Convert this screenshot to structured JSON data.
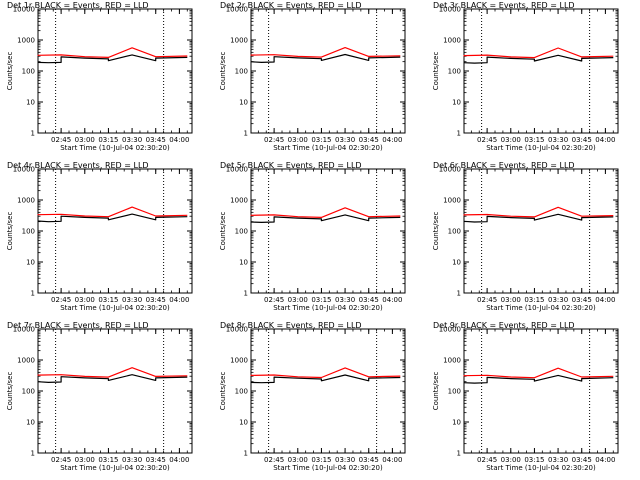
{
  "chart_data": [
    {
      "type": "line",
      "title": "Det 1r BLACK = Events, RED = LLD",
      "xlabel": "Start Time (10-Jul-04 02:30:20)",
      "ylabel": "Counts/sec",
      "yscale": "log",
      "ylim": [
        1,
        10000
      ],
      "xlim": [
        "02:30:20",
        "04:08:00"
      ],
      "xtick_labels": [
        "02:45",
        "03:00",
        "03:15",
        "03:30",
        "03:45",
        "04:00"
      ],
      "ytick_labels": [
        "1",
        "10",
        "100",
        "1000",
        "10000"
      ],
      "vlines": [
        "02:41:30",
        "03:50:00"
      ],
      "series": [
        {
          "color": "#000000",
          "x": [
            "02:30",
            "02:37",
            "02:37",
            "02:45",
            "02:45",
            "03:00",
            "03:15",
            "03:15",
            "03:30",
            "03:45",
            "03:45",
            "04:05"
          ],
          "values": [
            190,
            185,
            185,
            190,
            285,
            260,
            245,
            215,
            330,
            215,
            260,
            275
          ]
        },
        {
          "color": "#ff0000",
          "x": [
            "02:30",
            "02:45",
            "03:00",
            "03:15",
            "03:30",
            "03:45",
            "04:05"
          ],
          "values": [
            320,
            330,
            290,
            275,
            560,
            290,
            305
          ]
        }
      ]
    },
    {
      "type": "line",
      "title": "Det 2r BLACK = Events, RED = LLD",
      "xlabel": "Start Time (10-Jul-04 02:30:20)",
      "ylabel": "Counts/sec",
      "yscale": "log",
      "ylim": [
        1,
        10000
      ],
      "xlim": [
        "02:30:20",
        "04:08:00"
      ],
      "xtick_labels": [
        "02:45",
        "03:00",
        "03:15",
        "03:30",
        "03:45",
        "04:00"
      ],
      "ytick_labels": [
        "1",
        "10",
        "100",
        "1000",
        "10000"
      ],
      "vlines": [
        "02:41:30",
        "03:50:00"
      ],
      "series": [
        {
          "color": "#000000",
          "x": [
            "02:30",
            "02:37",
            "02:37",
            "02:45",
            "02:45",
            "03:00",
            "03:15",
            "03:15",
            "03:30",
            "03:45",
            "03:45",
            "04:05"
          ],
          "values": [
            200,
            190,
            190,
            195,
            290,
            265,
            250,
            220,
            340,
            220,
            265,
            280
          ]
        },
        {
          "color": "#ff0000",
          "x": [
            "02:30",
            "02:45",
            "03:00",
            "03:15",
            "03:30",
            "03:45",
            "04:05"
          ],
          "values": [
            325,
            335,
            295,
            280,
            570,
            295,
            310
          ]
        }
      ]
    },
    {
      "type": "line",
      "title": "Det 3r BLACK = Events, RED = LLD",
      "xlabel": "Start Time (10-Jul-04 02:30:20)",
      "ylabel": "Counts/sec",
      "yscale": "log",
      "ylim": [
        1,
        10000
      ],
      "xlim": [
        "02:30:20",
        "04:08:00"
      ],
      "xtick_labels": [
        "02:45",
        "03:00",
        "03:15",
        "03:30",
        "03:45",
        "04:00"
      ],
      "ytick_labels": [
        "1",
        "10",
        "100",
        "1000",
        "10000"
      ],
      "vlines": [
        "02:41:30",
        "03:50:00"
      ],
      "series": [
        {
          "color": "#000000",
          "x": [
            "02:30",
            "02:37",
            "02:37",
            "02:45",
            "02:45",
            "03:00",
            "03:15",
            "03:15",
            "03:30",
            "03:45",
            "03:45",
            "04:05"
          ],
          "values": [
            185,
            180,
            180,
            185,
            280,
            255,
            240,
            210,
            320,
            210,
            255,
            270
          ]
        },
        {
          "color": "#ff0000",
          "x": [
            "02:30",
            "02:45",
            "03:00",
            "03:15",
            "03:30",
            "03:45",
            "04:05"
          ],
          "values": [
            315,
            325,
            285,
            270,
            550,
            285,
            300
          ]
        }
      ]
    },
    {
      "type": "line",
      "title": "Det 4r BLACK = Events, RED = LLD",
      "xlabel": "Start Time (10-Jul-04 02:30:20)",
      "ylabel": "Counts/sec",
      "yscale": "log",
      "ylim": [
        1,
        10000
      ],
      "xlim": [
        "02:30:20",
        "04:08:00"
      ],
      "xtick_labels": [
        "02:45",
        "03:00",
        "03:15",
        "03:30",
        "03:45",
        "04:00"
      ],
      "ytick_labels": [
        "1",
        "10",
        "100",
        "1000",
        "10000"
      ],
      "vlines": [
        "02:41:30",
        "03:50:00"
      ],
      "series": [
        {
          "color": "#000000",
          "x": [
            "02:30",
            "02:37",
            "02:37",
            "02:45",
            "02:45",
            "03:00",
            "03:15",
            "03:15",
            "03:30",
            "03:45",
            "03:45",
            "04:05"
          ],
          "values": [
            210,
            200,
            200,
            205,
            300,
            275,
            260,
            230,
            350,
            230,
            275,
            290
          ]
        },
        {
          "color": "#ff0000",
          "x": [
            "02:30",
            "02:45",
            "03:00",
            "03:15",
            "03:30",
            "03:45",
            "04:05"
          ],
          "values": [
            335,
            345,
            305,
            290,
            590,
            305,
            320
          ]
        }
      ]
    },
    {
      "type": "line",
      "title": "Det 5r BLACK = Events, RED = LLD",
      "xlabel": "Start Time (10-Jul-04 02:30:20)",
      "ylabel": "Counts/sec",
      "yscale": "log",
      "ylim": [
        1,
        10000
      ],
      "xlim": [
        "02:30:20",
        "04:08:00"
      ],
      "xtick_labels": [
        "02:45",
        "03:00",
        "03:15",
        "03:30",
        "03:45",
        "04:00"
      ],
      "ytick_labels": [
        "1",
        "10",
        "100",
        "1000",
        "10000"
      ],
      "vlines": [
        "02:41:30",
        "03:50:00"
      ],
      "series": [
        {
          "color": "#000000",
          "x": [
            "02:30",
            "02:37",
            "02:37",
            "02:45",
            "02:45",
            "03:00",
            "03:15",
            "03:15",
            "03:30",
            "03:45",
            "03:45",
            "04:05"
          ],
          "values": [
            195,
            190,
            190,
            195,
            285,
            260,
            245,
            215,
            330,
            215,
            260,
            275
          ]
        },
        {
          "color": "#ff0000",
          "x": [
            "02:30",
            "02:45",
            "03:00",
            "03:15",
            "03:30",
            "03:45",
            "04:05"
          ],
          "values": [
            320,
            330,
            290,
            275,
            560,
            290,
            305
          ]
        }
      ]
    },
    {
      "type": "line",
      "title": "Det 6r BLACK = Events, RED = LLD",
      "xlabel": "Start Time (10-Jul-04 02:30:20)",
      "ylabel": "Counts/sec",
      "yscale": "log",
      "ylim": [
        1,
        10000
      ],
      "xlim": [
        "02:30:20",
        "04:08:00"
      ],
      "xtick_labels": [
        "02:45",
        "03:00",
        "03:15",
        "03:30",
        "03:45",
        "04:00"
      ],
      "ytick_labels": [
        "1",
        "10",
        "100",
        "1000",
        "10000"
      ],
      "vlines": [
        "02:41:30",
        "03:50:00"
      ],
      "series": [
        {
          "color": "#000000",
          "x": [
            "02:30",
            "02:37",
            "02:37",
            "02:45",
            "02:45",
            "03:00",
            "03:15",
            "03:15",
            "03:30",
            "03:45",
            "03:45",
            "04:05"
          ],
          "values": [
            205,
            195,
            195,
            200,
            295,
            270,
            255,
            225,
            345,
            225,
            270,
            285
          ]
        },
        {
          "color": "#ff0000",
          "x": [
            "02:30",
            "02:45",
            "03:00",
            "03:15",
            "03:30",
            "03:45",
            "04:05"
          ],
          "values": [
            330,
            340,
            300,
            285,
            580,
            300,
            315
          ]
        }
      ]
    },
    {
      "type": "line",
      "title": "Det 7r BLACK = Events, RED = LLD",
      "xlabel": "Start Time (10-Jul-04 02:30:20)",
      "ylabel": "Counts/sec",
      "yscale": "log",
      "ylim": [
        1,
        10000
      ],
      "xlim": [
        "02:30:20",
        "04:08:00"
      ],
      "xtick_labels": [
        "02:45",
        "03:00",
        "03:15",
        "03:30",
        "03:45",
        "04:00"
      ],
      "ytick_labels": [
        "1",
        "10",
        "100",
        "1000",
        "10000"
      ],
      "vlines": [
        "02:41:30",
        "03:50:00"
      ],
      "series": [
        {
          "color": "#000000",
          "x": [
            "02:30",
            "02:37",
            "02:37",
            "02:45",
            "02:45",
            "03:00",
            "03:15",
            "03:15",
            "03:30",
            "03:45",
            "03:45",
            "04:05"
          ],
          "values": [
            200,
            190,
            190,
            195,
            290,
            265,
            250,
            220,
            335,
            220,
            265,
            280
          ]
        },
        {
          "color": "#ff0000",
          "x": [
            "02:30",
            "02:45",
            "03:00",
            "03:15",
            "03:30",
            "03:45",
            "04:05"
          ],
          "values": [
            325,
            335,
            295,
            280,
            565,
            295,
            310
          ]
        }
      ]
    },
    {
      "type": "line",
      "title": "Det 8r BLACK = Events, RED = LLD",
      "xlabel": "Start Time (10-Jul-04 02:30:20)",
      "ylabel": "Counts/sec",
      "yscale": "log",
      "ylim": [
        1,
        10000
      ],
      "xlim": [
        "02:30:20",
        "04:08:00"
      ],
      "xtick_labels": [
        "02:45",
        "03:00",
        "03:15",
        "03:30",
        "03:45",
        "04:00"
      ],
      "ytick_labels": [
        "1",
        "10",
        "100",
        "1000",
        "10000"
      ],
      "vlines": [
        "02:41:30",
        "03:50:00"
      ],
      "series": [
        {
          "color": "#000000",
          "x": [
            "02:30",
            "02:37",
            "02:37",
            "02:45",
            "02:45",
            "03:00",
            "03:15",
            "03:15",
            "03:30",
            "03:45",
            "03:45",
            "04:05"
          ],
          "values": [
            190,
            185,
            185,
            190,
            280,
            258,
            243,
            213,
            328,
            213,
            258,
            272
          ]
        },
        {
          "color": "#ff0000",
          "x": [
            "02:30",
            "02:45",
            "03:00",
            "03:15",
            "03:30",
            "03:45",
            "04:05"
          ],
          "values": [
            318,
            328,
            288,
            273,
            555,
            288,
            302
          ]
        }
      ]
    },
    {
      "type": "line",
      "title": "Det 9r BLACK = Events, RED = LLD",
      "xlabel": "Start Time (10-Jul-04 02:30:20)",
      "ylabel": "Counts/sec",
      "yscale": "log",
      "ylim": [
        1,
        10000
      ],
      "xlim": [
        "02:30:20",
        "04:08:00"
      ],
      "xtick_labels": [
        "02:45",
        "03:00",
        "03:15",
        "03:30",
        "03:45",
        "04:00"
      ],
      "ytick_labels": [
        "1",
        "10",
        "100",
        "1000",
        "10000"
      ],
      "vlines": [
        "02:41:30",
        "03:50:00"
      ],
      "series": [
        {
          "color": "#000000",
          "x": [
            "02:30",
            "02:37",
            "02:37",
            "02:45",
            "02:45",
            "03:00",
            "03:15",
            "03:15",
            "03:30",
            "03:45",
            "03:45",
            "04:05"
          ],
          "values": [
            185,
            180,
            180,
            185,
            275,
            252,
            238,
            208,
            318,
            208,
            252,
            268
          ]
        },
        {
          "color": "#ff0000",
          "x": [
            "02:30",
            "02:45",
            "03:00",
            "03:15",
            "03:30",
            "03:45",
            "04:05"
          ],
          "values": [
            312,
            322,
            282,
            268,
            545,
            282,
            298
          ]
        }
      ]
    }
  ]
}
